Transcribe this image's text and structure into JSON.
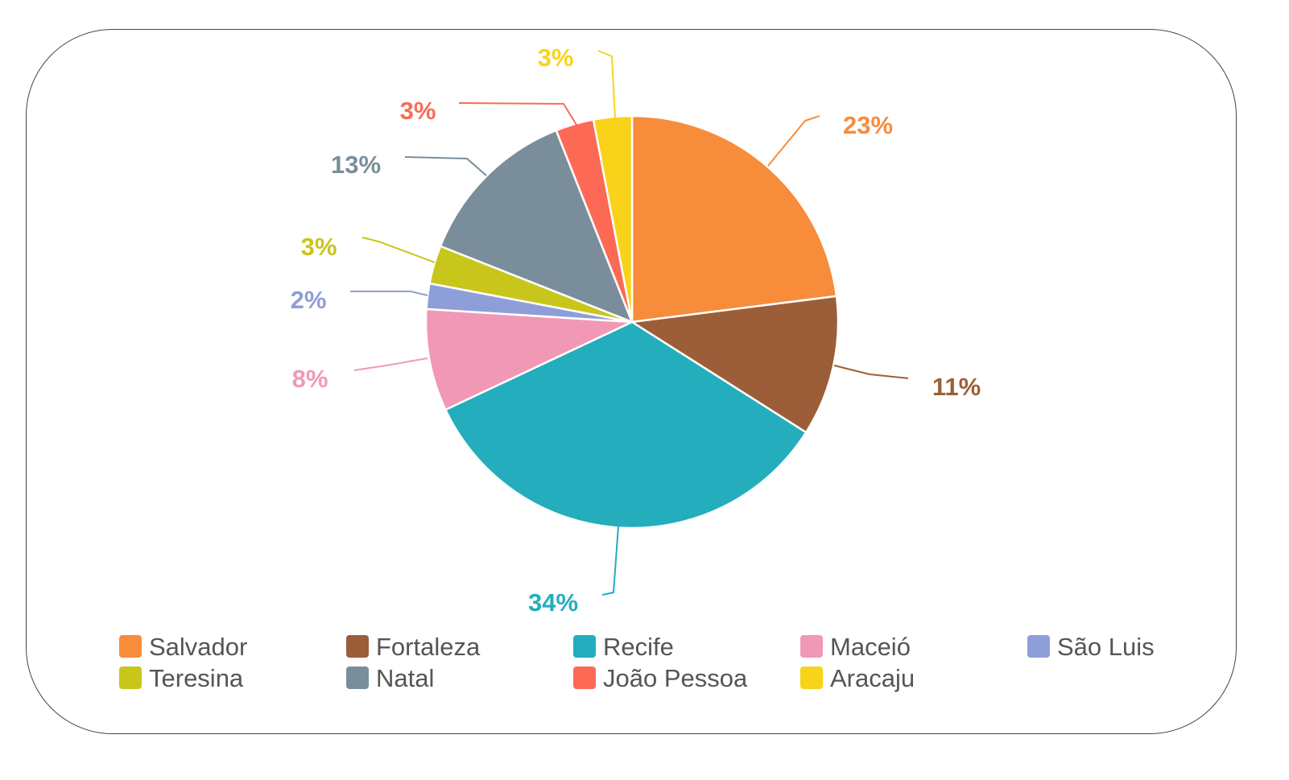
{
  "chart_data": {
    "type": "pie",
    "slices": [
      {
        "label": "Salvador",
        "value": 23,
        "data_label": "23%",
        "color": "#f78c3b"
      },
      {
        "label": "Fortaleza",
        "value": 11,
        "data_label": "11%",
        "color": "#9c5e38"
      },
      {
        "label": "Recife",
        "value": 34,
        "data_label": "34%",
        "color": "#24adbd"
      },
      {
        "label": "Maceió",
        "value": 8,
        "data_label": "8%",
        "color": "#f298b7"
      },
      {
        "label": "São Luis",
        "value": 2,
        "data_label": "2%",
        "color": "#8e9ed9"
      },
      {
        "label": "Teresina",
        "value": 3,
        "data_label": "3%",
        "color": "#c8c61a"
      },
      {
        "label": "Natal",
        "value": 13,
        "data_label": "13%",
        "color": "#798e9a"
      },
      {
        "label": "João Pessoa",
        "value": 3,
        "data_label": "3%",
        "color": "#fc6a55"
      },
      {
        "label": "Aracaju",
        "value": 3,
        "data_label": "3%",
        "color": "#f8d31a"
      }
    ],
    "legend_position": "bottom"
  }
}
